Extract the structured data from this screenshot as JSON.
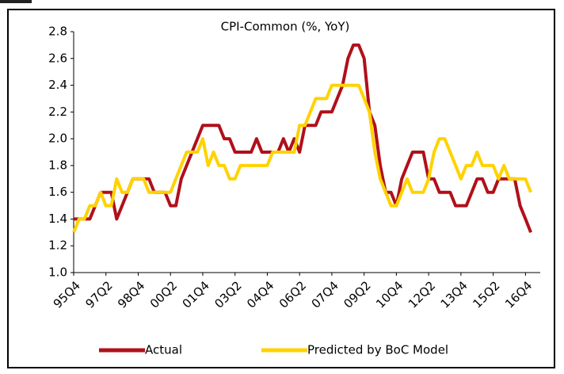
{
  "chart_data": {
    "type": "line",
    "title": "CPI-Common (%, YoY)",
    "categories": [
      "95Q4",
      null,
      null,
      null,
      null,
      null,
      "97Q2",
      null,
      null,
      null,
      null,
      null,
      "98Q4",
      null,
      null,
      null,
      null,
      null,
      "00Q2",
      null,
      null,
      null,
      null,
      null,
      "01Q4",
      null,
      null,
      null,
      null,
      null,
      "03Q2",
      null,
      null,
      null,
      null,
      null,
      "04Q4",
      null,
      null,
      null,
      null,
      null,
      "06Q2",
      null,
      null,
      null,
      null,
      null,
      "07Q4",
      null,
      null,
      null,
      null,
      null,
      "09Q2",
      null,
      null,
      null,
      null,
      null,
      "10Q4",
      null,
      null,
      null,
      null,
      null,
      "12Q2",
      null,
      null,
      null,
      null,
      null,
      "13Q4",
      null,
      null,
      null,
      null,
      null,
      "15Q2",
      null,
      null,
      null,
      null,
      null,
      "16Q4",
      null
    ],
    "series": [
      {
        "name": "Actual",
        "color": "#b0101a",
        "values": [
          1.4,
          1.4,
          1.4,
          1.4,
          1.5,
          1.6,
          1.6,
          1.6,
          1.4,
          1.5,
          1.6,
          1.7,
          1.7,
          1.7,
          1.7,
          1.6,
          1.6,
          1.6,
          1.5,
          1.5,
          1.7,
          1.8,
          1.9,
          2.0,
          2.1,
          2.1,
          2.1,
          2.1,
          2.0,
          2.0,
          1.9,
          1.9,
          1.9,
          1.9,
          2.0,
          1.9,
          1.9,
          1.9,
          1.9,
          2.0,
          1.9,
          2.0,
          1.9,
          2.1,
          2.1,
          2.1,
          2.2,
          2.2,
          2.2,
          2.3,
          2.4,
          2.6,
          2.7,
          2.7,
          2.6,
          2.2,
          2.1,
          1.8,
          1.6,
          1.6,
          1.5,
          1.7,
          1.8,
          1.9,
          1.9,
          1.9,
          1.7,
          1.7,
          1.6,
          1.6,
          1.6,
          1.5,
          1.5,
          1.5,
          1.6,
          1.7,
          1.7,
          1.6,
          1.6,
          1.7,
          1.7,
          1.7,
          1.7,
          1.5,
          1.4,
          1.3
        ]
      },
      {
        "name": "Predicted by BoC Model",
        "color": "#ffd200",
        "values": [
          1.3,
          1.4,
          1.4,
          1.5,
          1.5,
          1.6,
          1.5,
          1.5,
          1.7,
          1.6,
          1.6,
          1.7,
          1.7,
          1.7,
          1.6,
          1.6,
          1.6,
          1.6,
          1.6,
          1.7,
          1.8,
          1.9,
          1.9,
          1.9,
          2.0,
          1.8,
          1.9,
          1.8,
          1.8,
          1.7,
          1.7,
          1.8,
          1.8,
          1.8,
          1.8,
          1.8,
          1.8,
          1.9,
          1.9,
          1.9,
          1.9,
          1.9,
          2.1,
          2.1,
          2.2,
          2.3,
          2.3,
          2.3,
          2.4,
          2.4,
          2.4,
          2.4,
          2.4,
          2.4,
          2.3,
          2.2,
          1.9,
          1.7,
          1.6,
          1.5,
          1.5,
          1.6,
          1.7,
          1.6,
          1.6,
          1.6,
          1.7,
          1.9,
          2.0,
          2.0,
          1.9,
          1.8,
          1.7,
          1.8,
          1.8,
          1.9,
          1.8,
          1.8,
          1.8,
          1.7,
          1.8,
          1.7,
          1.7,
          1.7,
          1.7,
          1.6
        ]
      }
    ],
    "ylim": [
      1.0,
      2.8
    ],
    "yticks": [
      {
        "value": 1.0,
        "label": "1.0"
      },
      1.2,
      1.4,
      1.6,
      1.8,
      {
        "value": 2.0,
        "label": "2.0"
      },
      2.2,
      2.4,
      2.6,
      2.8
    ]
  }
}
